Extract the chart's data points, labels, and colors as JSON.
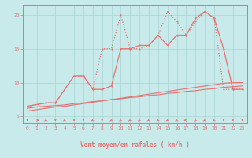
{
  "xlabel": "Vent moyen/en rafales ( km/h )",
  "xlim": [
    -0.5,
    23.5
  ],
  "ylim": [
    4.0,
    21.5
  ],
  "yticks": [
    5,
    10,
    15,
    20
  ],
  "xticks": [
    0,
    1,
    2,
    3,
    4,
    5,
    6,
    7,
    8,
    9,
    10,
    11,
    12,
    13,
    14,
    15,
    16,
    17,
    18,
    19,
    20,
    21,
    22,
    23
  ],
  "bg_color": "#c8eaea",
  "line_color": "#e87070",
  "grid_color": "#a8d4d4",
  "line1": {
    "x": [
      0,
      1,
      2,
      3,
      4,
      5,
      6,
      7,
      8,
      9,
      10,
      11,
      12,
      13,
      14,
      15,
      16,
      17,
      18,
      19,
      20,
      21,
      22,
      23
    ],
    "y": [
      6.2,
      6.4,
      6.5,
      6.6,
      6.7,
      6.9,
      7.0,
      7.2,
      7.3,
      7.5,
      7.6,
      7.8,
      7.9,
      8.1,
      8.2,
      8.4,
      8.5,
      8.7,
      8.8,
      9.0,
      9.1,
      9.3,
      9.4,
      9.5
    ]
  },
  "line2": {
    "x": [
      0,
      1,
      2,
      3,
      4,
      5,
      6,
      7,
      8,
      9,
      10,
      11,
      12,
      13,
      14,
      15,
      16,
      17,
      18,
      19,
      20,
      21,
      22,
      23
    ],
    "y": [
      5.8,
      6.0,
      6.2,
      6.4,
      6.5,
      6.7,
      6.9,
      7.1,
      7.3,
      7.5,
      7.7,
      7.9,
      8.1,
      8.3,
      8.5,
      8.7,
      8.9,
      9.1,
      9.3,
      9.5,
      9.7,
      9.9,
      10.0,
      10.0
    ]
  },
  "line_vent": {
    "x": [
      0,
      2,
      3,
      5,
      6,
      7,
      8,
      9,
      10,
      11,
      12,
      13,
      14,
      15,
      16,
      17,
      18,
      19,
      20,
      21,
      22,
      23
    ],
    "y": [
      6.5,
      7.0,
      7.0,
      11.0,
      11.0,
      9.0,
      9.0,
      9.5,
      15.0,
      15.0,
      15.5,
      15.5,
      17.0,
      15.5,
      17.0,
      17.0,
      19.5,
      20.5,
      19.5,
      15.0,
      9.0,
      9.0
    ],
    "style": "-"
  },
  "line_rafales": {
    "x": [
      0,
      2,
      3,
      5,
      6,
      7,
      8,
      9,
      10,
      11,
      12,
      13,
      14,
      15,
      16,
      17,
      18,
      19,
      20,
      21,
      22,
      23
    ],
    "y": [
      6.5,
      7.0,
      7.0,
      11.0,
      11.0,
      9.0,
      15.0,
      15.0,
      20.0,
      15.0,
      15.0,
      15.5,
      17.0,
      20.5,
      19.0,
      17.0,
      19.0,
      20.5,
      19.5,
      9.0,
      9.0,
      9.0
    ],
    "style": ":"
  },
  "wind_symbols": [
    {
      "x": 0,
      "type": "down"
    },
    {
      "x": 1,
      "type": "right"
    },
    {
      "x": 2,
      "type": "down-left"
    },
    {
      "x": 3,
      "type": "down"
    },
    {
      "x": 4,
      "type": "down-left"
    },
    {
      "x": 5,
      "type": "down"
    },
    {
      "x": 6,
      "type": "down"
    },
    {
      "x": 7,
      "type": "down-left"
    },
    {
      "x": 8,
      "type": "down"
    },
    {
      "x": 9,
      "type": "down-left"
    },
    {
      "x": 10,
      "type": "down-left"
    },
    {
      "x": 11,
      "type": "down-left"
    },
    {
      "x": 12,
      "type": "down-left"
    },
    {
      "x": 13,
      "type": "down-left"
    },
    {
      "x": 14,
      "type": "down-left"
    },
    {
      "x": 15,
      "type": "down-left"
    },
    {
      "x": 16,
      "type": "down-left"
    },
    {
      "x": 17,
      "type": "left"
    },
    {
      "x": 18,
      "type": "down-left"
    },
    {
      "x": 19,
      "type": "down-left"
    },
    {
      "x": 20,
      "type": "down-left"
    },
    {
      "x": 21,
      "type": "down"
    },
    {
      "x": 22,
      "type": "down"
    },
    {
      "x": 23,
      "type": "down"
    }
  ]
}
